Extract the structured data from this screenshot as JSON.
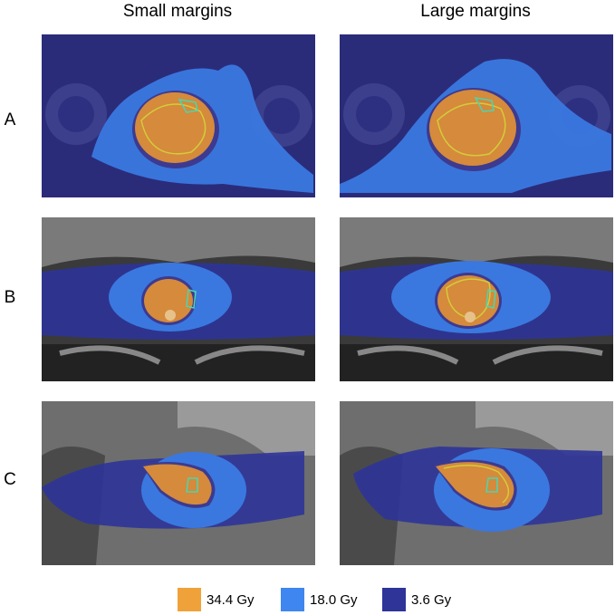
{
  "columns": [
    "Small margins",
    "Large margins"
  ],
  "rows": [
    "A",
    "B",
    "C"
  ],
  "legend": [
    {
      "label": "34.4 Gy",
      "color": "#f0a23a"
    },
    {
      "label": "18.0 Gy",
      "color": "#3f86f0"
    },
    {
      "label": "3.6 Gy",
      "color": "#2e3498"
    }
  ]
}
